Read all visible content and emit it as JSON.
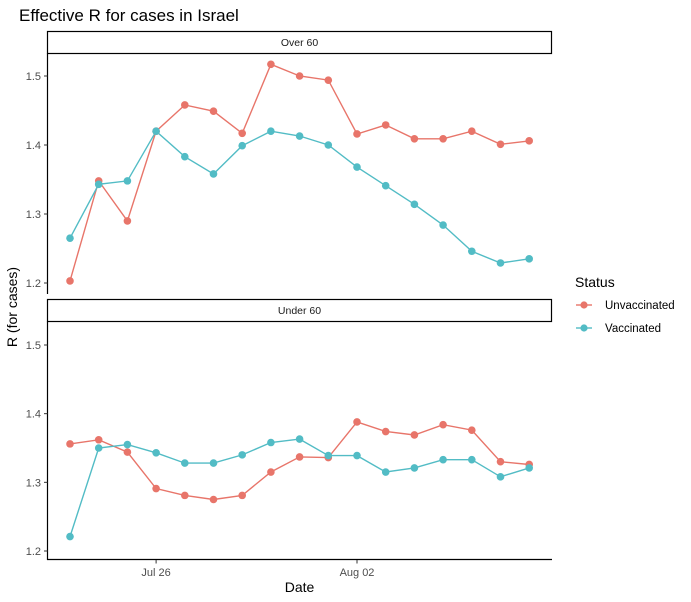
{
  "chart_data": {
    "type": "line",
    "title": "Effective R for cases in Israel",
    "xlabel": "Date",
    "ylabel": "R (for cases)",
    "x": [
      "Jul 23",
      "Jul 24",
      "Jul 25",
      "Jul 26",
      "Jul 27",
      "Jul 28",
      "Jul 29",
      "Jul 30",
      "Jul 31",
      "Aug 01",
      "Aug 02",
      "Aug 03",
      "Aug 04",
      "Aug 05",
      "Aug 06",
      "Aug 07",
      "Aug 08"
    ],
    "x_ticks": [
      {
        "index": 3,
        "label": "Jul 26"
      },
      {
        "index": 10,
        "label": "Aug 02"
      }
    ],
    "y_ticks": [
      1.2,
      1.3,
      1.4,
      1.5
    ],
    "y_tick_labels": [
      "1.2",
      "1.3",
      "1.4",
      "1.5"
    ],
    "ylim": [
      1.19,
      1.535
    ],
    "grid": false,
    "legend": {
      "title": "Status",
      "position": "right",
      "entries": [
        {
          "name": "Unvaccinated",
          "color": "#F8766D"
        },
        {
          "name": "Vaccinated",
          "color": "#00BFC4"
        }
      ]
    },
    "facets": [
      {
        "label": "Over 60",
        "series": [
          {
            "name": "Unvaccinated",
            "color": "#E8756A",
            "values": [
              1.203,
              1.348,
              1.29,
              1.42,
              1.458,
              1.449,
              1.417,
              1.517,
              1.5,
              1.494,
              1.416,
              1.429,
              1.409,
              1.409,
              1.42,
              1.401,
              1.406
            ]
          },
          {
            "name": "Vaccinated",
            "color": "#52BCC5",
            "values": [
              1.265,
              1.343,
              1.348,
              1.42,
              1.383,
              1.358,
              1.399,
              1.42,
              1.413,
              1.4,
              1.368,
              1.341,
              1.314,
              1.284,
              1.246,
              1.229,
              1.235
            ]
          }
        ]
      },
      {
        "label": "Under 60",
        "series": [
          {
            "name": "Unvaccinated",
            "color": "#E8756A",
            "values": [
              1.356,
              1.362,
              1.344,
              1.291,
              1.281,
              1.275,
              1.281,
              1.315,
              1.337,
              1.336,
              1.388,
              1.374,
              1.369,
              1.384,
              1.376,
              1.33,
              1.326
            ]
          },
          {
            "name": "Vaccinated",
            "color": "#52BCC5",
            "values": [
              1.221,
              1.35,
              1.355,
              1.343,
              1.328,
              1.328,
              1.34,
              1.358,
              1.363,
              1.339,
              1.339,
              1.315,
              1.321,
              1.333,
              1.333,
              1.308,
              1.321
            ]
          }
        ]
      }
    ]
  }
}
